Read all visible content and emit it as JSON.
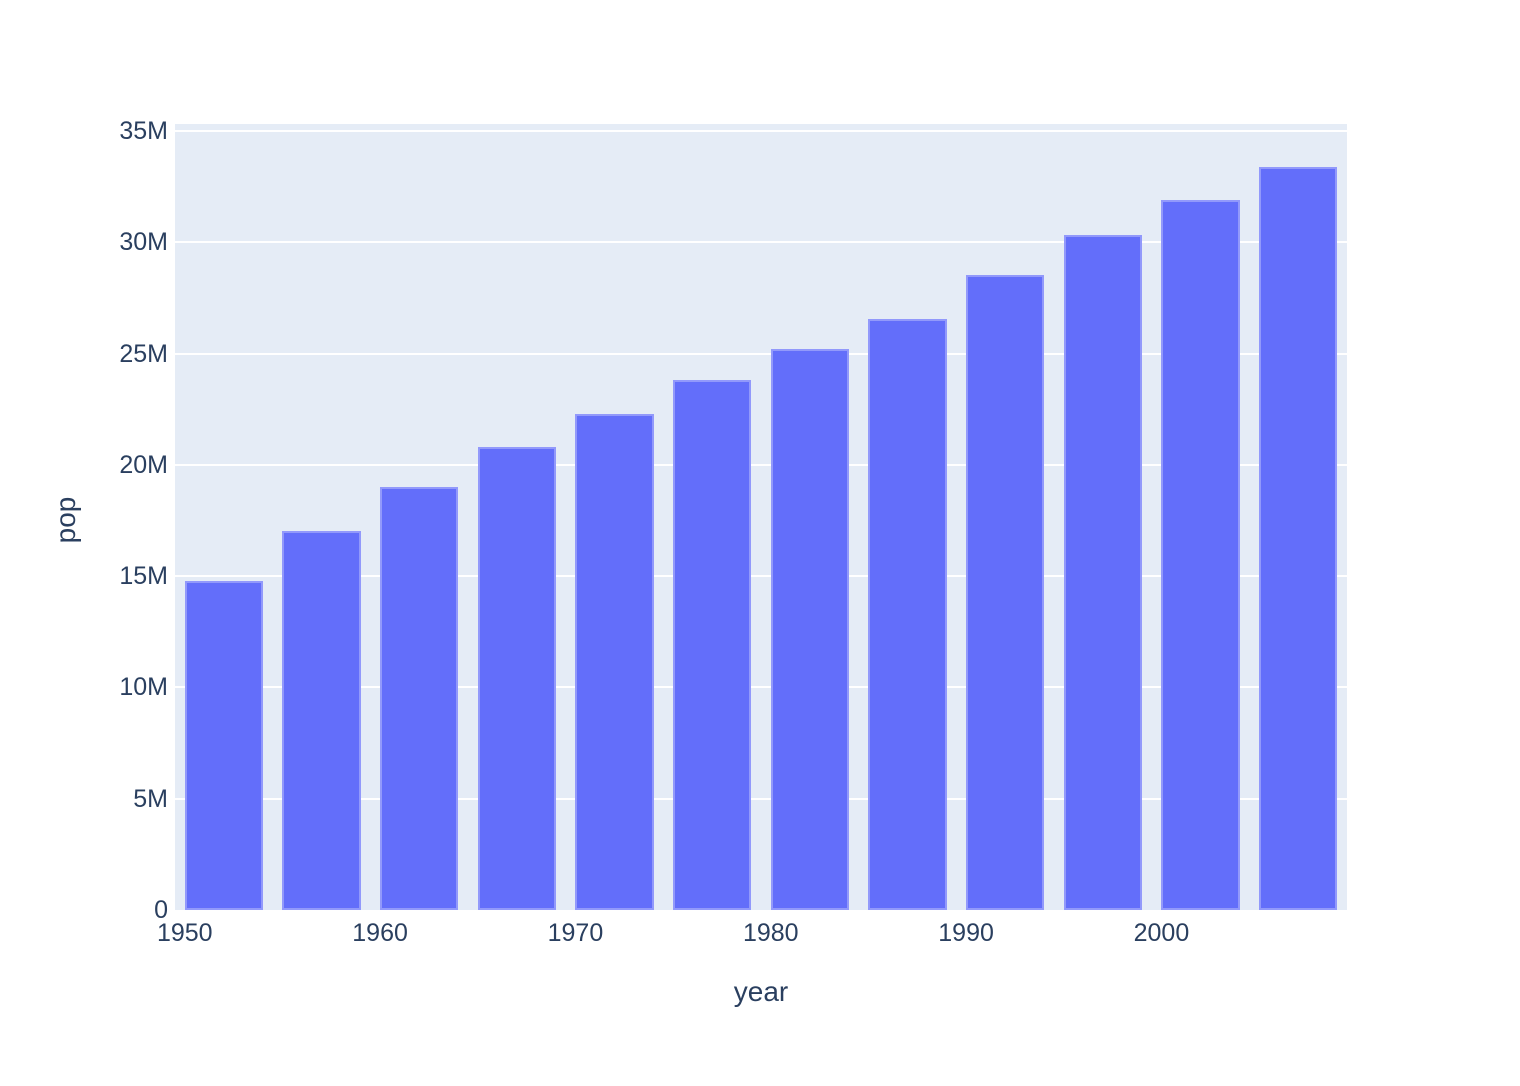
{
  "chart_data": {
    "type": "bar",
    "title": "",
    "xlabel": "year",
    "ylabel": "pop",
    "x": [
      1952,
      1957,
      1962,
      1967,
      1972,
      1977,
      1982,
      1987,
      1992,
      1997,
      2002,
      2007
    ],
    "series": [
      {
        "name": "pop",
        "values": [
          14785584,
          17010154,
          18985849,
          20819767,
          22284500,
          23796400,
          25201900,
          26549700,
          28523502,
          30305843,
          31902268,
          33390141
        ]
      }
    ],
    "xlim": [
      1949.5,
      2009.5
    ],
    "ylim": [
      0,
      35000000
    ],
    "bar_width_in_x_units": 4,
    "x_tick_values": [
      1950,
      1960,
      1970,
      1980,
      1990,
      2000
    ],
    "x_tick_labels": [
      "1950",
      "1960",
      "1970",
      "1980",
      "1990",
      "2000"
    ],
    "y_tick_values": [
      0,
      5000000,
      10000000,
      15000000,
      20000000,
      25000000,
      30000000,
      35000000
    ],
    "y_tick_labels": [
      "0",
      "5M",
      "10M",
      "15M",
      "20M",
      "25M",
      "30M",
      "35M"
    ],
    "grid": true,
    "legend_position": "none",
    "colors": {
      "bar": "#636EFA",
      "bar_edge": "rgba(255,255,255,0.3)",
      "plot_background": "#E5ECF6",
      "gridline": "#FFFFFF",
      "text": "#2A3F5F",
      "page_background": "#FFFFFF"
    }
  }
}
